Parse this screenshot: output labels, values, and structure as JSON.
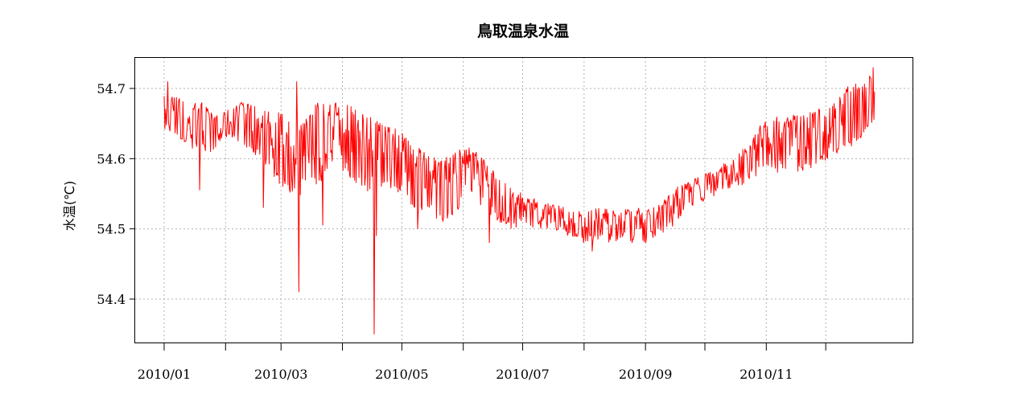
{
  "chart_data": {
    "type": "line",
    "title": "鳥取温泉水温",
    "xlabel": "",
    "ylabel": "水温(℃)",
    "ylim": [
      54.34,
      54.74
    ],
    "xlim": [
      "2010-01-01",
      "2010-12-31"
    ],
    "grid": true,
    "y_ticks": [
      "54.4",
      "54.5",
      "54.6",
      "54.7"
    ],
    "x_ticks": [
      "2010/01",
      "2010/02",
      "2010/03",
      "2010/04",
      "2010/05",
      "2010/06",
      "2010/07",
      "2010/08",
      "2010/09",
      "2010/10",
      "2010/11",
      "2010/12"
    ],
    "x_tick_labels": [
      "2010/01",
      "",
      "2010/03",
      "",
      "2010/05",
      "",
      "2010/07",
      "",
      "2010/09",
      "",
      "2010/11",
      ""
    ],
    "series": [
      {
        "color": "#ff0000",
        "resolution": "approximate daily envelope (min/max) of hourly readings",
        "x": [
          "2010-01-01",
          "2010-01-08",
          "2010-01-15",
          "2010-01-22",
          "2010-01-29",
          "2010-02-05",
          "2010-02-12",
          "2010-02-19",
          "2010-02-26",
          "2010-03-05",
          "2010-03-12",
          "2010-03-19",
          "2010-03-26",
          "2010-04-02",
          "2010-04-09",
          "2010-04-16",
          "2010-04-23",
          "2010-04-30",
          "2010-05-07",
          "2010-05-14",
          "2010-05-21",
          "2010-05-28",
          "2010-06-04",
          "2010-06-11",
          "2010-06-18",
          "2010-06-25",
          "2010-07-02",
          "2010-07-09",
          "2010-07-16",
          "2010-07-23",
          "2010-07-30",
          "2010-08-06",
          "2010-08-13",
          "2010-08-20",
          "2010-08-27",
          "2010-09-03",
          "2010-09-10",
          "2010-09-17",
          "2010-09-24",
          "2010-10-01",
          "2010-10-08",
          "2010-10-15",
          "2010-10-22",
          "2010-10-29",
          "2010-11-05",
          "2010-11-12",
          "2010-11-19",
          "2010-11-26",
          "2010-12-03",
          "2010-12-10",
          "2010-12-17",
          "2010-12-24"
        ],
        "low": [
          54.64,
          54.63,
          54.61,
          54.6,
          54.62,
          54.63,
          54.61,
          54.6,
          54.57,
          54.55,
          54.54,
          54.56,
          54.58,
          54.58,
          54.56,
          54.55,
          54.56,
          54.55,
          54.53,
          54.52,
          54.51,
          54.52,
          54.55,
          54.53,
          54.51,
          54.5,
          54.5,
          54.5,
          54.5,
          54.49,
          54.48,
          54.48,
          54.48,
          54.48,
          54.48,
          54.48,
          54.49,
          54.51,
          54.53,
          54.54,
          54.55,
          54.56,
          54.56,
          54.58,
          54.58,
          54.58,
          54.58,
          54.59,
          54.6,
          54.61,
          54.62,
          54.65
        ],
        "high": [
          54.7,
          54.69,
          54.68,
          54.68,
          54.66,
          54.68,
          54.68,
          54.67,
          54.67,
          54.66,
          54.65,
          54.68,
          54.68,
          54.68,
          54.67,
          54.66,
          54.65,
          54.64,
          54.62,
          54.61,
          54.6,
          54.61,
          54.62,
          54.6,
          54.58,
          54.56,
          54.55,
          54.54,
          54.54,
          54.53,
          54.53,
          54.53,
          54.53,
          54.53,
          54.53,
          54.53,
          54.54,
          54.56,
          54.57,
          54.58,
          54.59,
          54.6,
          54.62,
          54.65,
          54.66,
          54.66,
          54.67,
          54.67,
          54.68,
          54.7,
          54.71,
          54.72
        ],
        "spikes": [
          {
            "x": "2010-01-03",
            "y": 54.71
          },
          {
            "x": "2010-01-19",
            "y": 54.555
          },
          {
            "x": "2010-02-20",
            "y": 54.53
          },
          {
            "x": "2010-03-09",
            "y": 54.71
          },
          {
            "x": "2010-03-10",
            "y": 54.41
          },
          {
            "x": "2010-03-22",
            "y": 54.505
          },
          {
            "x": "2010-04-17",
            "y": 54.35
          },
          {
            "x": "2010-04-18",
            "y": 54.49
          },
          {
            "x": "2010-05-09",
            "y": 54.5
          },
          {
            "x": "2010-06-14",
            "y": 54.48
          },
          {
            "x": "2010-08-05",
            "y": 54.468
          },
          {
            "x": "2010-12-25",
            "y": 54.73
          }
        ]
      }
    ]
  }
}
